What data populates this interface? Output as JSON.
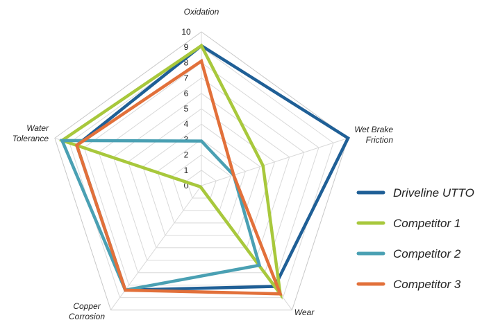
{
  "chart_data": {
    "type": "radar",
    "axes": [
      "Oxidation",
      "Wet Brake\nFriction",
      "Wear",
      "Copper\nCorrosion",
      "Water\nTolerance"
    ],
    "rlim": [
      0,
      10
    ],
    "ticks": [
      0,
      1,
      2,
      3,
      4,
      5,
      6,
      7,
      8,
      9,
      10
    ],
    "grid": true,
    "legend_position": "right",
    "series": [
      {
        "name": "Driveline UTTO",
        "color": "#1f5f96",
        "values": [
          9.1,
          10,
          8.1,
          8.4,
          8.5
        ]
      },
      {
        "name": "Competitor 1",
        "color": "#a8c83c",
        "values": [
          9.1,
          4.2,
          8.7,
          0.1,
          9.5
        ]
      },
      {
        "name": "Competitor 2",
        "color": "#4aa0b3",
        "values": [
          2.9,
          2.2,
          6.4,
          8.4,
          9.5
        ]
      },
      {
        "name": "Competitor 3",
        "color": "#e2703a",
        "values": [
          8.1,
          2.2,
          8.7,
          8.4,
          8.5
        ]
      }
    ]
  }
}
